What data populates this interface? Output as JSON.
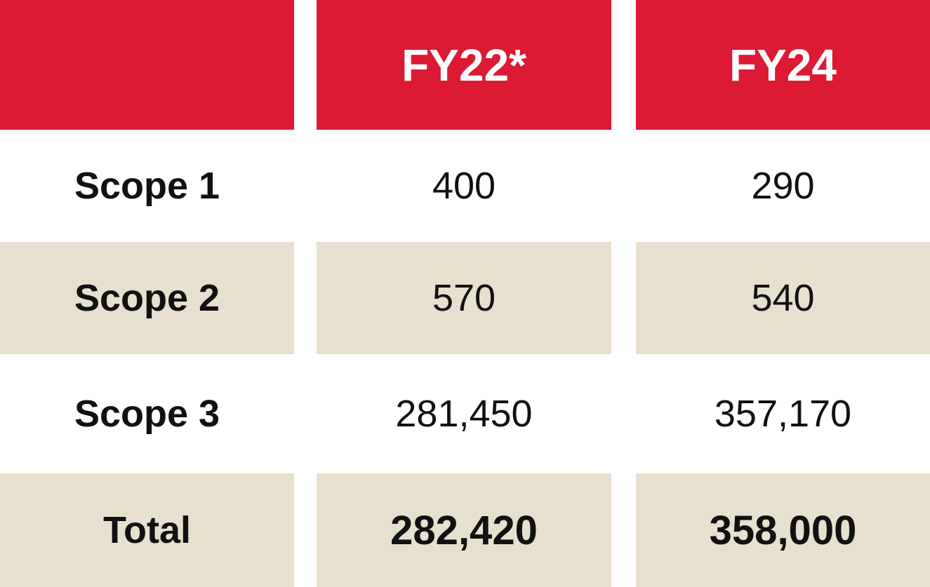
{
  "chart_data": {
    "type": "table",
    "columns": [
      "",
      "FY22*",
      "FY24"
    ],
    "rows": [
      {
        "label": "Scope 1",
        "values": [
          "400",
          "290"
        ]
      },
      {
        "label": "Scope 2",
        "values": [
          "570",
          "540"
        ]
      },
      {
        "label": "Scope 3",
        "values": [
          "281,450",
          "357,170"
        ]
      },
      {
        "label": "Total",
        "values": [
          "282,420",
          "358,000"
        ]
      }
    ],
    "colors": {
      "header": "#dc1a33",
      "stripe": "#e8e0cf",
      "header_text": "#ffffff"
    }
  }
}
